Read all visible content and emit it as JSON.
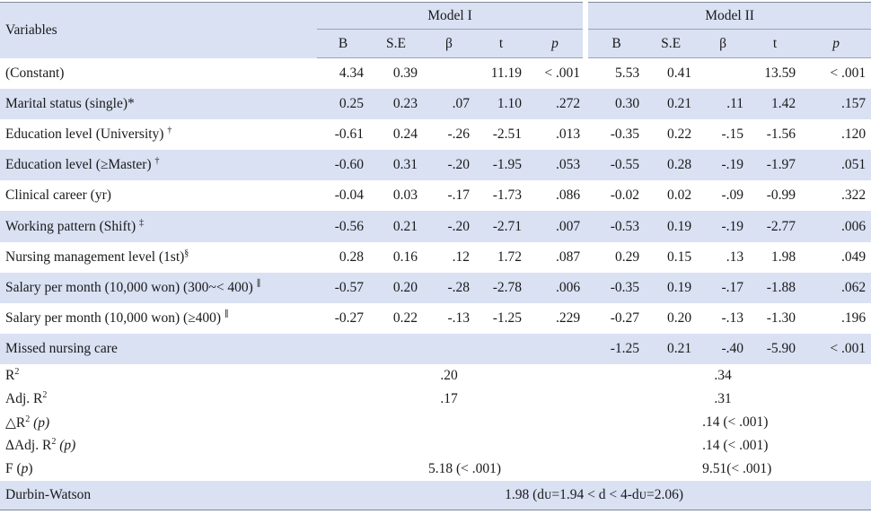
{
  "header": {
    "variables": "Variables",
    "model1": "Model I",
    "model2": "Model II",
    "cols": [
      "B",
      "S.E",
      "β",
      "t",
      "p"
    ]
  },
  "rows": [
    {
      "label": "(Constant)",
      "sup": "",
      "m1": [
        "4.34",
        "0.39",
        "",
        "11.19",
        "< .001"
      ],
      "m2": [
        "5.53",
        "0.41",
        "",
        "13.59",
        "< .001"
      ]
    },
    {
      "label": "Marital status (single)*",
      "sup": "",
      "m1": [
        "0.25",
        "0.23",
        ".07",
        "1.10",
        ".272"
      ],
      "m2": [
        "0.30",
        "0.21",
        ".11",
        "1.42",
        ".157"
      ]
    },
    {
      "label": "Education level (University) ",
      "sup": "†",
      "m1": [
        "-0.61",
        "0.24",
        "-.26",
        "-2.51",
        ".013"
      ],
      "m2": [
        "-0.35",
        "0.22",
        "-.15",
        "-1.56",
        ".120"
      ]
    },
    {
      "label": "Education level (≥Master) ",
      "sup": "†",
      "m1": [
        "-0.60",
        "0.31",
        "-.20",
        "-1.95",
        ".053"
      ],
      "m2": [
        "-0.55",
        "0.28",
        "-.19",
        "-1.97",
        ".051"
      ]
    },
    {
      "label": "Clinical career (yr)",
      "sup": "",
      "m1": [
        "-0.04",
        "0.03",
        "-.17",
        "-1.73",
        ".086"
      ],
      "m2": [
        "-0.02",
        "0.02",
        "-.09",
        "-0.99",
        ".322"
      ]
    },
    {
      "label": "Working pattern (Shift) ",
      "sup": "‡",
      "m1": [
        "-0.56",
        "0.21",
        "-.20",
        "-2.71",
        ".007"
      ],
      "m2": [
        "-0.53",
        "0.19",
        "-.19",
        "-2.77",
        ".006"
      ]
    },
    {
      "label": "Nursing management level (1st)",
      "sup": "§",
      "m1": [
        "0.28",
        "0.16",
        ".12",
        "1.72",
        ".087"
      ],
      "m2": [
        "0.29",
        "0.15",
        ".13",
        "1.98",
        ".049"
      ]
    },
    {
      "label": "Salary per month (10,000 won) (300~< 400) ",
      "sup": "∥",
      "m1": [
        "-0.57",
        "0.20",
        "-.28",
        "-2.78",
        ".006"
      ],
      "m2": [
        "-0.35",
        "0.19",
        "-.17",
        "-1.88",
        ".062"
      ]
    },
    {
      "label": "Salary per month (10,000 won) (≥400) ",
      "sup": "∥",
      "m1": [
        "-0.27",
        "0.22",
        "-.13",
        "-1.25",
        ".229"
      ],
      "m2": [
        "-0.27",
        "0.20",
        "-.13",
        "-1.30",
        ".196"
      ]
    },
    {
      "label": "Missed nursing care",
      "sup": "",
      "m1": [
        "",
        "",
        "",
        "",
        ""
      ],
      "m2": [
        "-1.25",
        "0.21",
        "-.40",
        "-5.90",
        "< .001"
      ]
    }
  ],
  "summary": {
    "r2_label": "R",
    "r2_sup": "2",
    "r2_m1": ".20",
    "r2_m2": ".34",
    "adj_label": "Adj. R",
    "adj_sup": "2",
    "adj_m1": ".17",
    "adj_m2": ".31",
    "dr2_label_a": "△R",
    "dr2_sup": "2",
    "dr2_label_b": " (p)",
    "dr2_m2": ".14 (< .001)",
    "dadj_label_a": "ΔAdj. R",
    "dadj_sup": "2",
    "dadj_label_b": " (p)",
    "dadj_m2": ".14 (< .001)",
    "f_label_a": "F (",
    "f_label_p": "p",
    "f_label_b": ")",
    "f_m1": "5.18 (< .001)",
    "f_m2": "9.51(< .001)"
  },
  "durbin": {
    "label": "Durbin-Watson",
    "value": "1.98 (dᴜ=1.94 < d < 4-dᴜ=2.06)"
  },
  "colors": {
    "band": "#d9e1f3",
    "rule": "#7f8799"
  }
}
